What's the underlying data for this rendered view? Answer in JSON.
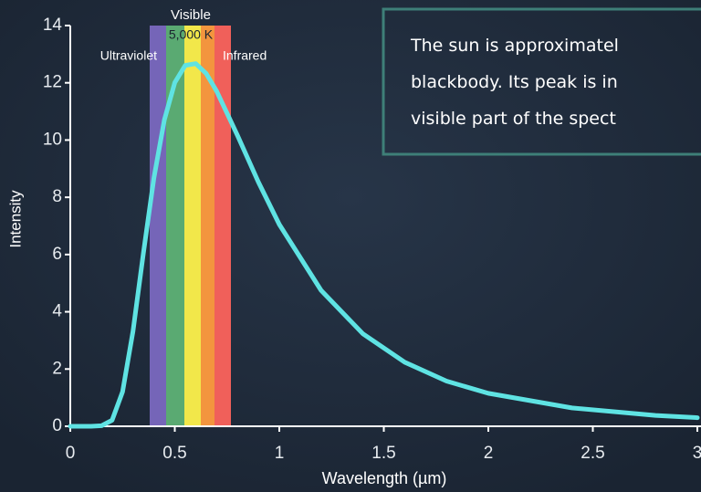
{
  "chart_data": {
    "type": "line",
    "x_label": "Wavelength (µm)",
    "y_label": "Intensity",
    "x": [
      0,
      0.1,
      0.15,
      0.2,
      0.25,
      0.3,
      0.35,
      0.4,
      0.45,
      0.5,
      0.55,
      0.6,
      0.65,
      0.7,
      0.8,
      0.9,
      1.0,
      1.2,
      1.4,
      1.6,
      1.8,
      2.0,
      2.4,
      2.8,
      3.0
    ],
    "values": [
      0,
      0,
      0.02,
      0.21,
      1.21,
      3.32,
      6.05,
      8.67,
      10.71,
      12.01,
      12.61,
      12.67,
      12.33,
      11.71,
      10.16,
      8.53,
      7.05,
      4.75,
      3.23,
      2.24,
      1.58,
      1.15,
      0.64,
      0.38,
      0.3
    ],
    "color": "#5fe3e3",
    "xlim": [
      0,
      3
    ],
    "ylim": [
      0,
      14
    ],
    "xticks": [
      0,
      0.5,
      1,
      1.5,
      2,
      2.5,
      3
    ],
    "yticks": [
      0,
      2,
      4,
      6,
      8,
      10,
      12,
      14
    ],
    "annotations": {
      "visible": "Visible",
      "temperature": "5,000 K",
      "ultraviolet": "Ultraviolet",
      "infrared": "Infrared"
    },
    "caption": [
      "The sun is approximatel",
      "blackbody. Its peak is in",
      "visible part of the spect"
    ]
  }
}
